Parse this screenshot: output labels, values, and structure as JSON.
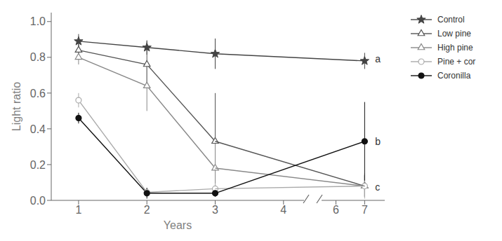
{
  "chart_data": [
    {
      "type": "line",
      "xlabel": "Years",
      "ylabel": "Light ratio",
      "xlim": [
        0.6,
        4.3
      ],
      "xticks": [
        1,
        2,
        3,
        4
      ],
      "ylim": [
        0.0,
        1.05
      ],
      "yticks": [
        {
          "value": 0,
          "label": "0.0"
        },
        0.2,
        0.4,
        0.6,
        0.8,
        {
          "value": 1,
          "label": "1.0"
        }
      ],
      "x": [
        1,
        2,
        3
      ],
      "series": [
        {
          "name": "Control",
          "color": "#444444",
          "marker": "star",
          "values": [
            0.89,
            0.855,
            0.82
          ],
          "yerr": [
            0.04,
            0.04,
            0.085
          ]
        },
        {
          "name": "Low pine",
          "color": "#555555",
          "marker": "triangle-open",
          "values": [
            0.84,
            0.76,
            0.33
          ],
          "yerr": [
            0.05,
            0.13,
            0.27
          ]
        },
        {
          "name": "High pine",
          "color": "#888888",
          "marker": "triangle-open",
          "values": [
            0.8,
            0.64,
            0.18
          ],
          "yerr": [
            0.04,
            0.14,
            0.14
          ]
        },
        {
          "name": "Pine + cor",
          "color": "#aaaaaa",
          "marker": "circle-open",
          "values": [
            0.56,
            0.045,
            0.065
          ],
          "yerr": [
            0.04,
            0.025,
            0.03
          ]
        },
        {
          "name": "Coronilla",
          "color": "#111111",
          "marker": "circle",
          "values": [
            0.46,
            0.04,
            0.04
          ],
          "yerr": [
            0.03,
            0.03,
            0.02
          ]
        }
      ]
    },
    {
      "type": "line",
      "xlim": [
        5.5,
        7.7
      ],
      "xticks": [
        6,
        7
      ],
      "ylim": [
        0.0,
        1.05
      ],
      "tick_labels": "x",
      "x": [
        7
      ],
      "series": [
        {
          "name": "Control",
          "color": "#444444",
          "marker": "star",
          "values": [
            0.78
          ],
          "yerr": [
            0.045
          ]
        },
        {
          "name": "Low pine",
          "color": "#555555",
          "marker": "triangle-open",
          "values": [
            0.08
          ],
          "yerr": [
            0.06
          ]
        },
        {
          "name": "High pine",
          "color": "#888888",
          "marker": "triangle-open",
          "values": [
            0.08
          ],
          "yerr": [
            0.06
          ]
        },
        {
          "name": "Pine + cor",
          "color": "#aaaaaa",
          "marker": "circle-open",
          "values": [
            0.08
          ],
          "yerr": [
            0.07
          ]
        },
        {
          "name": "Coronilla",
          "color": "#111111",
          "marker": "circle",
          "values": [
            0.33
          ],
          "yerr": [
            0.22
          ]
        }
      ],
      "annotations": [
        {
          "text": "a",
          "x": 7.35,
          "y": 0.79
        },
        {
          "text": "b",
          "x": 7.35,
          "y": 0.33
        },
        {
          "text": "c",
          "x": 7.35,
          "y": 0.075
        }
      ],
      "legend": "right"
    }
  ]
}
